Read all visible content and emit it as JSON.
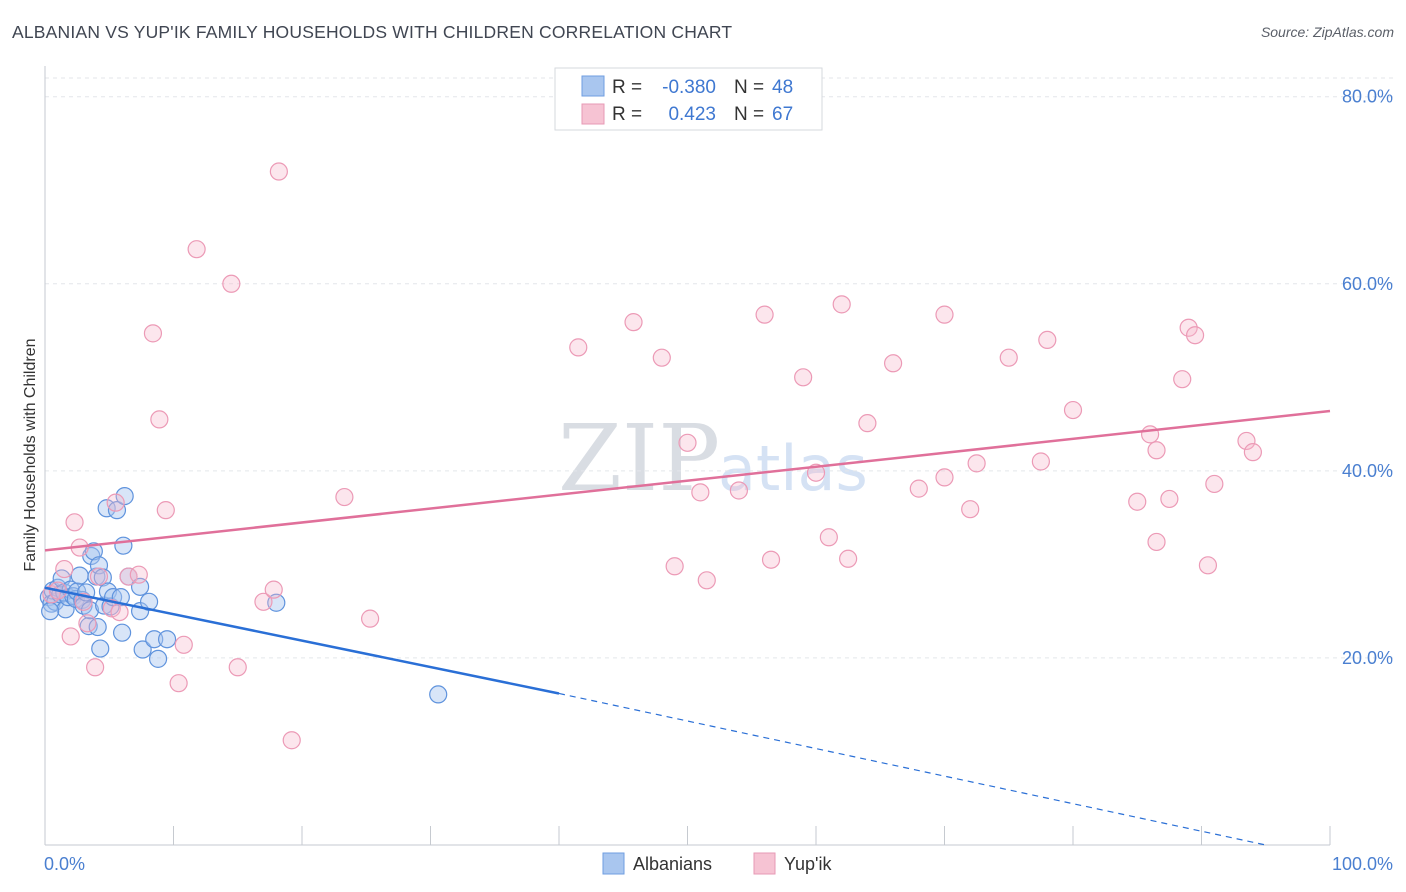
{
  "title": "ALBANIAN VS YUP'IK FAMILY HOUSEHOLDS WITH CHILDREN CORRELATION CHART",
  "source": "Source: ZipAtlas.com",
  "watermark": {
    "zip": "ZIP",
    "atlas": "atlas"
  },
  "legend": {
    "rows": [
      {
        "r_label": "R =",
        "r_value": "-0.380",
        "n_label": "N =",
        "n_value": "48",
        "color": "#4a7fd0"
      },
      {
        "r_label": "R =",
        "r_value": "0.423",
        "n_label": "N =",
        "n_value": "67",
        "color": "#e0709a"
      }
    ]
  },
  "bottom_legend": [
    "Albanians",
    "Yup'ik"
  ],
  "chart_data": {
    "type": "scatter",
    "title": "ALBANIAN VS YUP'IK FAMILY HOUSEHOLDS WITH CHILDREN CORRELATION CHART",
    "xlabel": "",
    "ylabel": "Family Households with Children",
    "xlim": [
      0,
      100
    ],
    "ylim": [
      0,
      82
    ],
    "x_tick_labels": [
      "0.0%",
      "100.0%"
    ],
    "y_ticks": [
      20,
      40,
      60,
      80
    ],
    "y_tick_labels": [
      "20.0%",
      "40.0%",
      "60.0%",
      "80.0%"
    ],
    "grid": true,
    "legend_position": "top-center",
    "colors": {
      "Albanians": "#a9c6ef",
      "Albanians_line": "#2a6fd6",
      "Yup'ik": "#f6b8cb",
      "Yup'ik_line": "#e0709a"
    },
    "series": [
      {
        "name": "Albanians",
        "points": [
          [
            0.3,
            26.5
          ],
          [
            0.5,
            25.8
          ],
          [
            0.6,
            27.2
          ],
          [
            0.8,
            26.0
          ],
          [
            1.0,
            27.5
          ],
          [
            1.2,
            26.8
          ],
          [
            1.3,
            28.5
          ],
          [
            1.5,
            27.0
          ],
          [
            1.6,
            25.2
          ],
          [
            1.8,
            26.5
          ],
          [
            2.0,
            27.3
          ],
          [
            2.2,
            26.6
          ],
          [
            2.4,
            26.3
          ],
          [
            2.5,
            27.1
          ],
          [
            2.7,
            28.8
          ],
          [
            2.9,
            26.2
          ],
          [
            3.0,
            25.6
          ],
          [
            3.2,
            27.0
          ],
          [
            3.4,
            23.4
          ],
          [
            3.5,
            25.1
          ],
          [
            3.6,
            30.9
          ],
          [
            3.8,
            31.4
          ],
          [
            4.0,
            28.7
          ],
          [
            4.1,
            23.3
          ],
          [
            4.2,
            29.9
          ],
          [
            4.3,
            21.0
          ],
          [
            4.5,
            28.6
          ],
          [
            4.6,
            25.6
          ],
          [
            4.8,
            36.0
          ],
          [
            4.9,
            27.1
          ],
          [
            5.1,
            25.5
          ],
          [
            5.3,
            26.5
          ],
          [
            5.6,
            35.8
          ],
          [
            5.9,
            26.5
          ],
          [
            6.0,
            22.7
          ],
          [
            6.1,
            32.0
          ],
          [
            6.2,
            37.3
          ],
          [
            6.5,
            28.7
          ],
          [
            7.4,
            27.6
          ],
          [
            7.4,
            25.0
          ],
          [
            7.6,
            20.9
          ],
          [
            8.1,
            26.0
          ],
          [
            8.5,
            22.0
          ],
          [
            8.8,
            19.9
          ],
          [
            9.5,
            22.0
          ],
          [
            18.0,
            25.9
          ],
          [
            30.6,
            16.1
          ],
          [
            0.4,
            25.0
          ]
        ],
        "trend": {
          "x": [
            0,
            40
          ],
          "y": [
            27.5,
            16.2
          ],
          "dashed_to": [
            95,
            0
          ]
        }
      },
      {
        "name": "Yup'ik",
        "points": [
          [
            0.5,
            26.8
          ],
          [
            1.0,
            27.2
          ],
          [
            1.5,
            29.5
          ],
          [
            2.0,
            22.3
          ],
          [
            2.3,
            34.5
          ],
          [
            2.7,
            31.8
          ],
          [
            3.0,
            26.0
          ],
          [
            3.3,
            23.7
          ],
          [
            3.9,
            19.0
          ],
          [
            4.2,
            28.7
          ],
          [
            5.2,
            25.3
          ],
          [
            5.5,
            36.6
          ],
          [
            5.8,
            24.9
          ],
          [
            6.5,
            28.7
          ],
          [
            7.3,
            28.9
          ],
          [
            8.4,
            54.7
          ],
          [
            8.9,
            45.5
          ],
          [
            9.4,
            35.8
          ],
          [
            10.8,
            21.4
          ],
          [
            10.4,
            17.3
          ],
          [
            11.8,
            63.7
          ],
          [
            14.5,
            60.0
          ],
          [
            15.0,
            19.0
          ],
          [
            17.0,
            26.0
          ],
          [
            17.8,
            27.3
          ],
          [
            18.2,
            72.0
          ],
          [
            19.2,
            11.2
          ],
          [
            23.3,
            37.2
          ],
          [
            25.3,
            24.2
          ],
          [
            41.5,
            53.2
          ],
          [
            45.8,
            55.9
          ],
          [
            48.0,
            52.1
          ],
          [
            49.0,
            29.8
          ],
          [
            50.0,
            43.0
          ],
          [
            51.5,
            28.3
          ],
          [
            51.0,
            37.7
          ],
          [
            54.0,
            37.9
          ],
          [
            56.0,
            56.7
          ],
          [
            56.5,
            30.5
          ],
          [
            59.0,
            50.0
          ],
          [
            60.0,
            39.8
          ],
          [
            61.0,
            32.9
          ],
          [
            62.0,
            57.8
          ],
          [
            62.5,
            30.6
          ],
          [
            64.0,
            45.1
          ],
          [
            66.0,
            51.5
          ],
          [
            68.0,
            38.1
          ],
          [
            70.0,
            39.3
          ],
          [
            70.0,
            56.7
          ],
          [
            72.0,
            35.9
          ],
          [
            72.5,
            40.8
          ],
          [
            75.0,
            52.1
          ],
          [
            77.5,
            41.0
          ],
          [
            78.0,
            54.0
          ],
          [
            80.0,
            46.5
          ],
          [
            85.0,
            36.7
          ],
          [
            86.0,
            43.9
          ],
          [
            86.5,
            42.2
          ],
          [
            86.5,
            32.4
          ],
          [
            87.5,
            37.0
          ],
          [
            88.5,
            49.8
          ],
          [
            89.0,
            55.3
          ],
          [
            89.5,
            54.5
          ],
          [
            90.5,
            29.9
          ],
          [
            91.0,
            38.6
          ],
          [
            93.5,
            43.2
          ],
          [
            94.0,
            42.0
          ]
        ],
        "trend": {
          "x": [
            0,
            100
          ],
          "y": [
            31.5,
            46.4
          ]
        }
      }
    ]
  }
}
